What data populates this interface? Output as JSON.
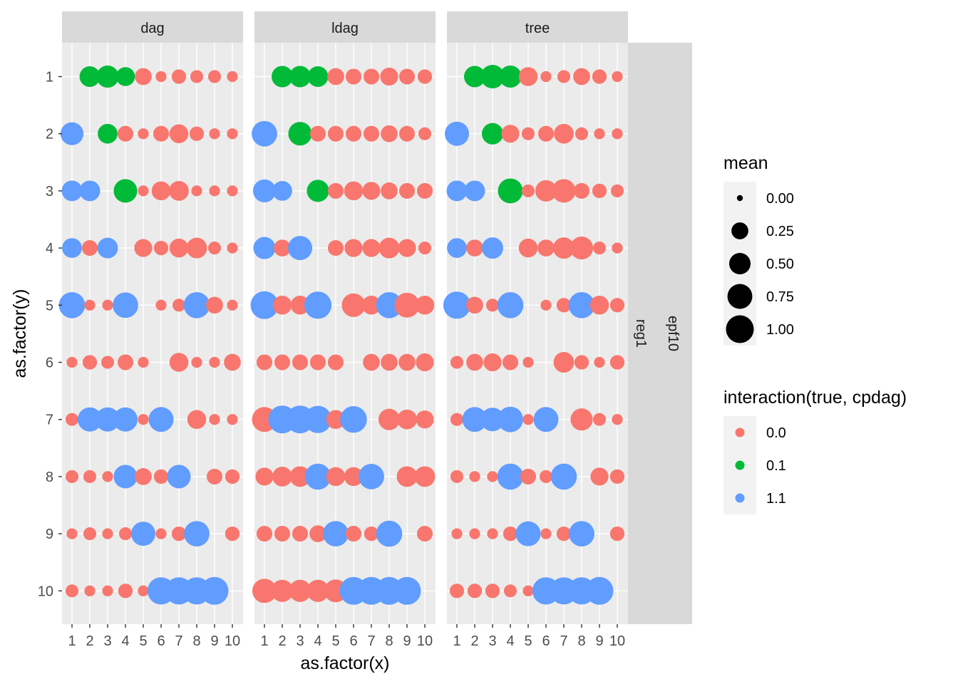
{
  "chart_data": {
    "type": "scatter",
    "title": "",
    "xlabel": "as.factor(x)",
    "ylabel": "as.factor(y)",
    "x_categories": [
      "1",
      "2",
      "3",
      "4",
      "5",
      "6",
      "7",
      "8",
      "9",
      "10"
    ],
    "y_categories": [
      "1",
      "2",
      "3",
      "4",
      "5",
      "6",
      "7",
      "8",
      "9",
      "10"
    ],
    "facet_columns": [
      "dag",
      "ldag",
      "tree"
    ],
    "facet_strip_right": [
      "reg1",
      "epf10"
    ],
    "grid": true,
    "legend_position": "right",
    "legend_size": {
      "title": "mean",
      "breaks": [
        "0.00",
        "0.25",
        "0.50",
        "0.75",
        "1.00"
      ],
      "values": [
        0.0,
        0.25,
        0.5,
        0.75,
        1.0
      ]
    },
    "legend_color": {
      "title": "interaction(true, cpdag)",
      "levels": [
        "0.0",
        "0.1",
        "1.1"
      ],
      "colors": [
        "#F8766D",
        "#00BA38",
        "#619CFF"
      ]
    },
    "panels": [
      {
        "facet": "dag",
        "rows": [
          {
            "y": "1",
            "mean": [
              null,
              0.45,
              0.55,
              0.35,
              0.25,
              0.05,
              0.15,
              0.1,
              0.1,
              0.05
            ],
            "group": [
              null,
              "0.1",
              "0.1",
              "0.1",
              "0.0",
              "0.0",
              "0.0",
              "0.0",
              "0.0",
              "0.0"
            ]
          },
          {
            "y": "2",
            "mean": [
              0.6,
              null,
              0.4,
              0.2,
              0.05,
              0.2,
              0.35,
              0.15,
              0.05,
              0.05
            ],
            "group": [
              "1.1",
              null,
              "0.1",
              "0.0",
              "0.0",
              "0.0",
              "0.0",
              "0.0",
              "0.0",
              "0.0"
            ]
          },
          {
            "y": "3",
            "mean": [
              0.45,
              0.45,
              null,
              0.65,
              0.05,
              0.35,
              0.4,
              0.05,
              0.05,
              0.05
            ],
            "group": [
              "1.1",
              "1.1",
              null,
              "0.1",
              "0.0",
              "0.0",
              "0.0",
              "0.0",
              "0.0",
              "0.0"
            ]
          },
          {
            "y": "4",
            "mean": [
              0.4,
              0.2,
              0.45,
              null,
              0.3,
              0.15,
              0.35,
              0.45,
              0.1,
              0.05
            ],
            "group": [
              "1.1",
              "0.0",
              "1.1",
              null,
              "0.0",
              "0.0",
              "0.0",
              "0.0",
              "0.0",
              "0.0"
            ]
          },
          {
            "y": "5",
            "mean": [
              0.85,
              0.05,
              0.05,
              0.8,
              null,
              0.05,
              0.1,
              0.85,
              0.25,
              0.05
            ],
            "group": [
              "1.1",
              "0.0",
              "0.0",
              "1.1",
              null,
              "0.0",
              "0.0",
              "1.1",
              "0.0",
              "0.0"
            ]
          },
          {
            "y": "6",
            "mean": [
              0.05,
              0.15,
              0.1,
              0.2,
              0.05,
              null,
              0.35,
              0.05,
              0.05,
              0.25
            ],
            "group": [
              "0.0",
              "0.0",
              "0.0",
              "0.0",
              "0.0",
              null,
              "0.0",
              "0.0",
              "0.0",
              "0.0"
            ]
          },
          {
            "y": "7",
            "mean": [
              0.1,
              0.7,
              0.7,
              0.7,
              0.05,
              0.75,
              null,
              0.35,
              0.05,
              0.05
            ],
            "group": [
              "0.0",
              "1.1",
              "1.1",
              "1.1",
              "0.0",
              "1.1",
              null,
              "0.0",
              "0.0",
              "0.0"
            ]
          },
          {
            "y": "8",
            "mean": [
              0.1,
              0.1,
              0.05,
              0.65,
              0.25,
              0.15,
              0.65,
              null,
              0.2,
              0.15
            ],
            "group": [
              "0.0",
              "0.0",
              "0.0",
              "1.1",
              "0.0",
              "0.0",
              "1.1",
              null,
              "0.0",
              "0.0"
            ]
          },
          {
            "y": "9",
            "mean": [
              0.05,
              0.1,
              0.05,
              0.1,
              0.7,
              0.05,
              0.15,
              0.8,
              null,
              0.15
            ],
            "group": [
              "0.0",
              "0.0",
              "0.0",
              "0.0",
              "1.1",
              "0.0",
              "0.0",
              "1.1",
              null,
              "0.0"
            ]
          },
          {
            "y": "10",
            "mean": [
              0.1,
              0.05,
              0.05,
              0.15,
              0.05,
              0.95,
              0.95,
              0.95,
              1.0,
              null
            ],
            "group": [
              "0.0",
              "0.0",
              "0.0",
              "0.0",
              "0.0",
              "1.1",
              "1.1",
              "1.1",
              "1.1",
              null
            ]
          }
        ]
      },
      {
        "facet": "ldag",
        "rows": [
          {
            "y": "1",
            "mean": [
              null,
              0.5,
              0.5,
              0.45,
              0.25,
              0.2,
              0.2,
              0.3,
              0.2,
              0.15
            ],
            "group": [
              null,
              "0.1",
              "0.1",
              "0.1",
              "0.0",
              "0.0",
              "0.0",
              "0.0",
              "0.0",
              "0.0"
            ]
          },
          {
            "y": "2",
            "mean": [
              0.8,
              null,
              0.65,
              0.2,
              0.2,
              0.2,
              0.2,
              0.25,
              0.2,
              0.1
            ],
            "group": [
              "1.1",
              null,
              "0.1",
              "0.0",
              "0.0",
              "0.0",
              "0.0",
              "0.0",
              "0.0",
              "0.0"
            ]
          },
          {
            "y": "3",
            "mean": [
              0.6,
              0.4,
              null,
              0.55,
              0.2,
              0.35,
              0.3,
              0.25,
              0.2,
              0.2
            ],
            "group": [
              "1.1",
              "1.1",
              null,
              "0.1",
              "0.0",
              "0.0",
              "0.0",
              "0.0",
              "0.0",
              "0.0"
            ]
          },
          {
            "y": "4",
            "mean": [
              0.55,
              0.25,
              0.7,
              null,
              0.2,
              0.3,
              0.3,
              0.45,
              0.3,
              0.1
            ],
            "group": [
              "1.1",
              "0.0",
              "1.1",
              null,
              "0.0",
              "0.0",
              "0.0",
              "0.0",
              "0.0",
              "0.0"
            ]
          },
          {
            "y": "5",
            "mean": [
              1.0,
              0.35,
              0.35,
              0.95,
              null,
              0.65,
              0.35,
              0.85,
              0.75,
              0.35
            ],
            "group": [
              "1.1",
              "0.0",
              "0.0",
              "1.1",
              null,
              "0.0",
              "0.0",
              "1.1",
              "0.0",
              "0.0"
            ]
          },
          {
            "y": "6",
            "mean": [
              0.2,
              0.2,
              0.2,
              0.2,
              0.2,
              null,
              0.25,
              0.25,
              0.25,
              0.3
            ],
            "group": [
              "0.0",
              "0.0",
              "0.0",
              "0.0",
              "0.0",
              null,
              "0.0",
              "0.0",
              "0.0",
              "0.0"
            ]
          },
          {
            "y": "7",
            "mean": [
              0.75,
              1.0,
              1.0,
              0.95,
              0.35,
              0.9,
              null,
              0.5,
              0.4,
              0.3
            ],
            "group": [
              "0.0",
              "1.1",
              "1.1",
              "1.1",
              "0.0",
              "1.1",
              null,
              "0.0",
              "0.0",
              "0.0"
            ]
          },
          {
            "y": "8",
            "mean": [
              0.3,
              0.4,
              0.45,
              0.85,
              0.35,
              0.35,
              0.8,
              null,
              0.45,
              0.45
            ],
            "group": [
              "0.0",
              "0.0",
              "0.0",
              "1.1",
              "0.0",
              "0.0",
              "1.1",
              null,
              "0.0",
              "0.0"
            ]
          },
          {
            "y": "9",
            "mean": [
              0.2,
              0.2,
              0.2,
              0.25,
              0.8,
              0.2,
              0.15,
              0.85,
              null,
              0.2
            ],
            "group": [
              "0.0",
              "0.0",
              "0.0",
              "0.0",
              "1.1",
              "0.0",
              "0.0",
              "1.1",
              null,
              "0.0"
            ]
          },
          {
            "y": "10",
            "mean": [
              0.7,
              0.55,
              0.55,
              0.55,
              0.6,
              1.0,
              1.0,
              1.0,
              1.0,
              null
            ],
            "group": [
              "0.0",
              "0.0",
              "0.0",
              "0.0",
              "0.0",
              "1.1",
              "1.1",
              "1.1",
              "1.1",
              null
            ]
          }
        ]
      },
      {
        "facet": "tree",
        "rows": [
          {
            "y": "1",
            "mean": [
              null,
              0.5,
              0.65,
              0.55,
              0.35,
              0.05,
              0.1,
              0.25,
              0.15,
              0.05
            ],
            "group": [
              null,
              "0.1",
              "0.1",
              "0.1",
              "0.0",
              "0.0",
              "0.0",
              "0.0",
              "0.0",
              "0.0"
            ]
          },
          {
            "y": "2",
            "mean": [
              0.7,
              null,
              0.5,
              0.3,
              0.1,
              0.2,
              0.4,
              0.1,
              0.05,
              0.05
            ],
            "group": [
              "1.1",
              null,
              "0.1",
              "0.0",
              "0.0",
              "0.0",
              "0.0",
              "0.0",
              "0.0",
              "0.0"
            ]
          },
          {
            "y": "3",
            "mean": [
              0.45,
              0.45,
              null,
              0.75,
              0.1,
              0.5,
              0.65,
              0.2,
              0.15,
              0.1
            ],
            "group": [
              "1.1",
              "1.1",
              null,
              "0.1",
              "0.0",
              "0.0",
              "0.0",
              "0.0",
              "0.0",
              "0.0"
            ]
          },
          {
            "y": "4",
            "mean": [
              0.4,
              0.25,
              0.5,
              null,
              0.35,
              0.25,
              0.5,
              0.6,
              0.1,
              0.05
            ],
            "group": [
              "1.1",
              "0.0",
              "1.1",
              null,
              "0.0",
              "0.0",
              "0.0",
              "0.0",
              "0.0",
              "0.0"
            ]
          },
          {
            "y": "5",
            "mean": [
              0.95,
              0.25,
              0.1,
              0.85,
              null,
              0.05,
              0.15,
              0.85,
              0.35,
              0.15
            ],
            "group": [
              "1.1",
              "0.0",
              "0.0",
              "1.1",
              null,
              "0.0",
              "0.0",
              "1.1",
              "0.0",
              "0.0"
            ]
          },
          {
            "y": "6",
            "mean": [
              0.1,
              0.25,
              0.3,
              0.2,
              0.05,
              null,
              0.45,
              0.15,
              0.05,
              0.15
            ],
            "group": [
              "0.0",
              "0.0",
              "0.0",
              "0.0",
              "0.0",
              null,
              "0.0",
              "0.0",
              "0.0",
              "0.0"
            ]
          },
          {
            "y": "7",
            "mean": [
              0.1,
              0.75,
              0.65,
              0.8,
              0.05,
              0.75,
              null,
              0.55,
              0.1,
              0.05
            ],
            "group": [
              "0.0",
              "1.1",
              "1.1",
              "1.1",
              "0.0",
              "1.1",
              null,
              "0.0",
              "0.0",
              "0.0"
            ]
          },
          {
            "y": "8",
            "mean": [
              0.1,
              0.05,
              0.05,
              0.85,
              0.2,
              0.1,
              0.85,
              null,
              0.3,
              0.15
            ],
            "group": [
              "0.0",
              "0.0",
              "0.0",
              "1.1",
              "0.0",
              "0.0",
              "1.1",
              null,
              "0.0",
              "0.0"
            ]
          },
          {
            "y": "9",
            "mean": [
              0.05,
              0.05,
              0.05,
              0.15,
              0.75,
              0.05,
              0.15,
              0.8,
              null,
              0.15
            ],
            "group": [
              "0.0",
              "0.0",
              "0.0",
              "0.0",
              "1.1",
              "0.0",
              "0.0",
              "1.1",
              null,
              "0.0"
            ]
          },
          {
            "y": "10",
            "mean": [
              0.15,
              0.15,
              0.15,
              0.1,
              0.05,
              0.95,
              0.95,
              0.95,
              1.0,
              null
            ],
            "group": [
              "0.0",
              "0.0",
              "0.0",
              "0.0",
              "0.0",
              "1.1",
              "1.1",
              "1.1",
              "1.1",
              null
            ]
          }
        ]
      }
    ]
  }
}
